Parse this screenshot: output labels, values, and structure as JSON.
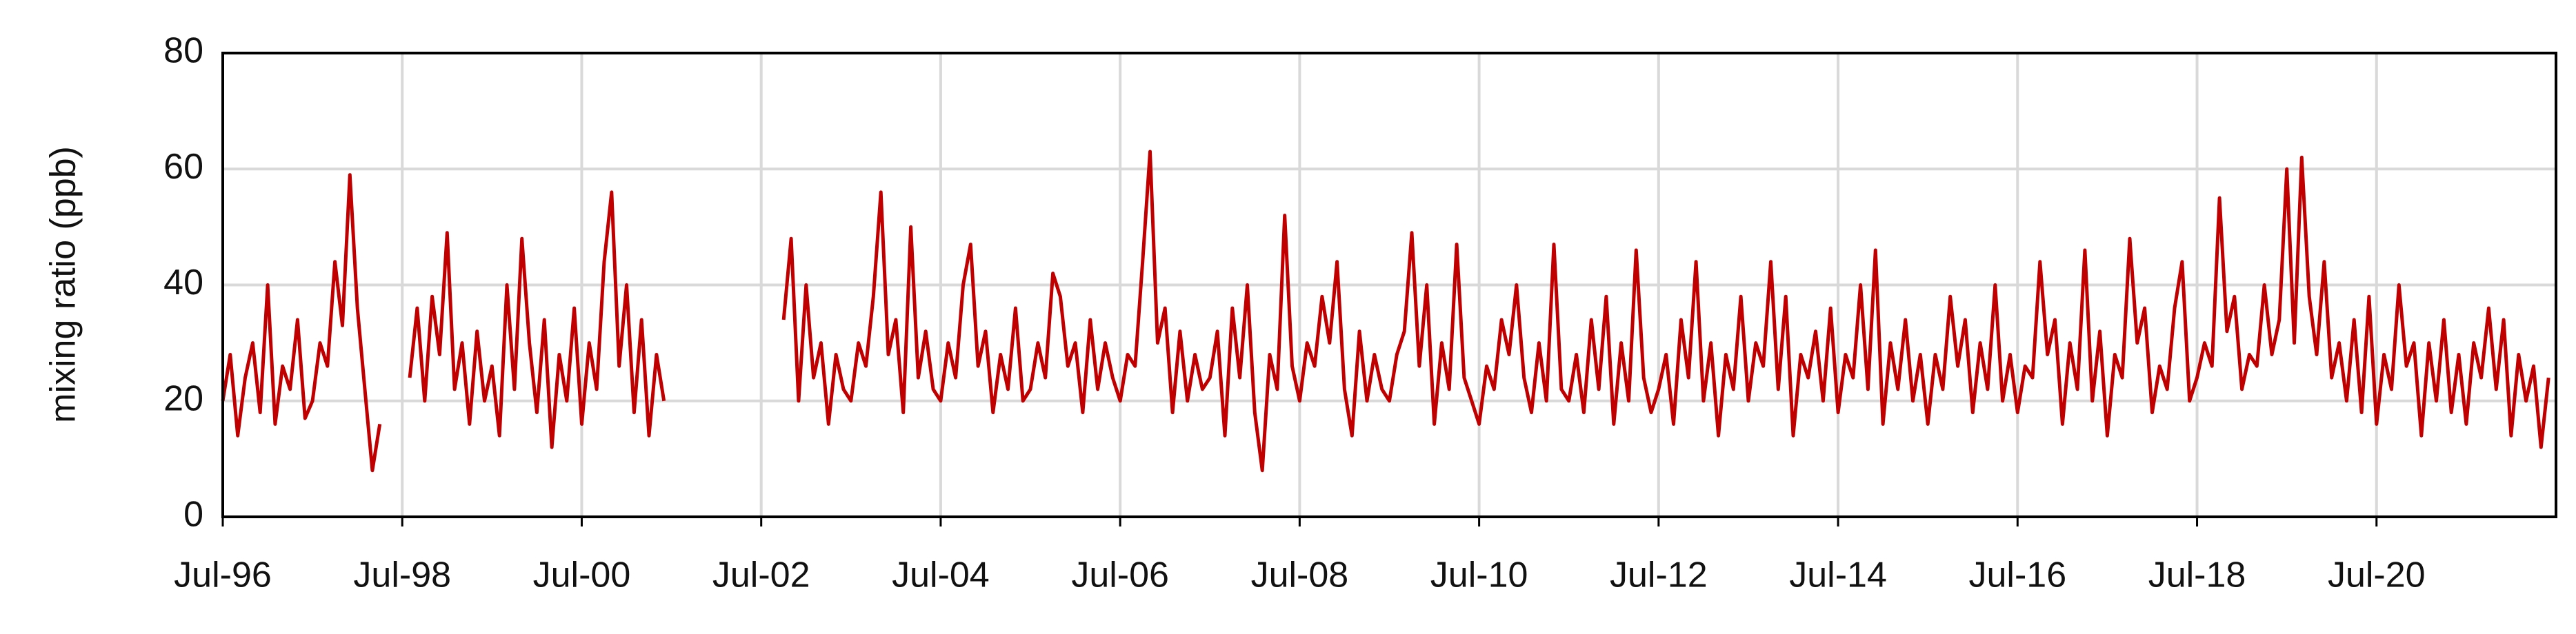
{
  "chart_data": {
    "type": "line",
    "y_label": "mixing ratio (ppb)",
    "x": [
      "1996-07",
      "1996-08",
      "1996-09",
      "1996-10",
      "1996-11",
      "1996-12",
      "1997-01",
      "1997-02",
      "1997-03",
      "1997-04",
      "1997-05",
      "1997-06",
      "1997-07",
      "1997-08",
      "1997-09",
      "1997-10",
      "1997-11",
      "1997-12",
      "1998-01",
      "1998-02",
      "1998-03",
      "1998-04",
      "1998-05",
      "1998-06",
      "1998-07",
      "1998-08",
      "1998-09",
      "1998-10",
      "1998-11",
      "1998-12",
      "1999-01",
      "1999-02",
      "1999-03",
      "1999-04",
      "1999-05",
      "1999-06",
      "1999-07",
      "1999-08",
      "1999-09",
      "1999-10",
      "1999-11",
      "1999-12",
      "2000-01",
      "2000-02",
      "2000-03",
      "2000-04",
      "2000-05",
      "2000-06",
      "2000-07",
      "2000-08",
      "2000-09",
      "2000-10",
      "2000-11",
      "2000-12",
      "2001-01",
      "2001-02",
      "2001-03",
      "2001-04",
      "2001-05",
      "2001-06",
      "2001-07",
      "2001-08",
      "2001-09",
      "2001-10",
      "2001-11",
      "2001-12",
      "2002-01",
      "2002-02",
      "2002-03",
      "2002-04",
      "2002-05",
      "2002-06",
      "2002-07",
      "2002-08",
      "2002-09",
      "2002-10",
      "2002-11",
      "2002-12",
      "2003-01",
      "2003-02",
      "2003-03",
      "2003-04",
      "2003-05",
      "2003-06",
      "2003-07",
      "2003-08",
      "2003-09",
      "2003-10",
      "2003-11",
      "2003-12",
      "2004-01",
      "2004-02",
      "2004-03",
      "2004-04",
      "2004-05",
      "2004-06",
      "2004-07",
      "2004-08",
      "2004-09",
      "2004-10",
      "2004-11",
      "2004-12",
      "2005-01",
      "2005-02",
      "2005-03",
      "2005-04",
      "2005-05",
      "2005-06",
      "2005-07",
      "2005-08",
      "2005-09",
      "2005-10",
      "2005-11",
      "2005-12",
      "2006-01",
      "2006-02",
      "2006-03",
      "2006-04",
      "2006-05",
      "2006-06",
      "2006-07",
      "2006-08",
      "2006-09",
      "2006-10",
      "2006-11",
      "2006-12",
      "2007-01",
      "2007-02",
      "2007-03",
      "2007-04",
      "2007-05",
      "2007-06",
      "2007-07",
      "2007-08",
      "2007-09",
      "2007-10",
      "2007-11",
      "2007-12",
      "2008-01",
      "2008-02",
      "2008-03",
      "2008-04",
      "2008-05",
      "2008-06",
      "2008-07",
      "2008-08",
      "2008-09",
      "2008-10",
      "2008-11",
      "2008-12",
      "2009-01",
      "2009-02",
      "2009-03",
      "2009-04",
      "2009-05",
      "2009-06",
      "2009-07",
      "2009-08",
      "2009-09",
      "2009-10",
      "2009-11",
      "2009-12",
      "2010-01",
      "2010-02",
      "2010-03",
      "2010-04",
      "2010-05",
      "2010-06",
      "2010-07",
      "2010-08",
      "2010-09",
      "2010-10",
      "2010-11",
      "2010-12",
      "2011-01",
      "2011-02",
      "2011-03",
      "2011-04",
      "2011-05",
      "2011-06",
      "2011-07",
      "2011-08",
      "2011-09",
      "2011-10",
      "2011-11",
      "2011-12",
      "2012-01",
      "2012-02",
      "2012-03",
      "2012-04",
      "2012-05",
      "2012-06",
      "2012-07",
      "2012-08",
      "2012-09",
      "2012-10",
      "2012-11",
      "2012-12",
      "2013-01",
      "2013-02",
      "2013-03",
      "2013-04",
      "2013-05",
      "2013-06",
      "2013-07",
      "2013-08",
      "2013-09",
      "2013-10",
      "2013-11",
      "2013-12",
      "2014-01",
      "2014-02",
      "2014-03",
      "2014-04",
      "2014-05",
      "2014-06",
      "2014-07",
      "2014-08",
      "2014-09",
      "2014-10",
      "2014-11",
      "2014-12",
      "2015-01",
      "2015-02",
      "2015-03",
      "2015-04",
      "2015-05",
      "2015-06",
      "2015-07",
      "2015-08",
      "2015-09",
      "2015-10",
      "2015-11",
      "2015-12",
      "2016-01",
      "2016-02",
      "2016-03",
      "2016-04",
      "2016-05",
      "2016-06",
      "2016-07",
      "2016-08",
      "2016-09",
      "2016-10",
      "2016-11",
      "2016-12",
      "2017-01",
      "2017-02",
      "2017-03",
      "2017-04",
      "2017-05",
      "2017-06",
      "2017-07",
      "2017-08",
      "2017-09",
      "2017-10",
      "2017-11",
      "2017-12",
      "2018-01",
      "2018-02",
      "2018-03",
      "2018-04",
      "2018-05",
      "2018-06",
      "2018-07",
      "2018-08",
      "2018-09",
      "2018-10",
      "2018-11",
      "2018-12",
      "2019-01",
      "2019-02",
      "2019-03",
      "2019-04",
      "2019-05",
      "2019-06",
      "2019-07",
      "2019-08",
      "2019-09",
      "2019-10",
      "2019-11",
      "2019-12",
      "2020-01",
      "2020-02",
      "2020-03",
      "2020-04",
      "2020-05",
      "2020-06",
      "2020-07",
      "2020-08",
      "2020-09",
      "2020-10",
      "2020-11",
      "2020-12",
      "2021-01",
      "2021-02",
      "2021-03",
      "2021-04",
      "2021-05",
      "2021-06",
      "2021-07",
      "2021-08",
      "2021-09",
      "2021-10",
      "2021-11",
      "2021-12",
      "2022-01",
      "2022-02",
      "2022-03",
      "2022-04",
      "2022-05",
      "2022-06"
    ],
    "series": [
      {
        "color": "#c00000",
        "values": [
          20,
          28,
          14,
          24,
          30,
          18,
          40,
          16,
          26,
          22,
          34,
          17,
          20,
          30,
          26,
          44,
          33,
          59,
          36,
          22,
          8,
          16,
          null,
          null,
          null,
          24,
          36,
          20,
          38,
          28,
          49,
          22,
          30,
          16,
          32,
          20,
          26,
          14,
          40,
          22,
          48,
          30,
          18,
          34,
          12,
          28,
          20,
          36,
          16,
          30,
          22,
          44,
          56,
          26,
          40,
          18,
          34,
          14,
          28,
          20,
          null,
          null,
          null,
          null,
          null,
          null,
          null,
          null,
          null,
          null,
          null,
          null,
          null,
          null,
          null,
          34,
          48,
          20,
          40,
          24,
          30,
          16,
          28,
          22,
          20,
          30,
          26,
          38,
          56,
          28,
          34,
          18,
          50,
          24,
          32,
          22,
          20,
          30,
          24,
          40,
          47,
          26,
          32,
          18,
          28,
          22,
          36,
          20,
          22,
          30,
          24,
          42,
          38,
          26,
          30,
          18,
          34,
          22,
          30,
          24,
          20,
          28,
          26,
          44,
          63,
          30,
          36,
          18,
          32,
          20,
          28,
          22,
          24,
          32,
          14,
          36,
          24,
          40,
          18,
          8,
          28,
          22,
          52,
          26,
          20,
          30,
          26,
          38,
          30,
          44,
          22,
          14,
          32,
          20,
          28,
          22,
          20,
          28,
          32,
          49,
          26,
          40,
          16,
          30,
          22,
          47,
          24,
          20,
          16,
          26,
          22,
          34,
          28,
          40,
          24,
          18,
          30,
          20,
          47,
          22,
          20,
          28,
          18,
          34,
          22,
          38,
          16,
          30,
          20,
          46,
          24,
          18,
          22,
          28,
          16,
          34,
          24,
          44,
          20,
          30,
          14,
          28,
          22,
          38,
          20,
          30,
          26,
          44,
          22,
          38,
          14,
          28,
          24,
          32,
          20,
          36,
          18,
          28,
          24,
          40,
          22,
          46,
          16,
          30,
          22,
          34,
          20,
          28,
          16,
          28,
          22,
          38,
          26,
          34,
          18,
          30,
          22,
          40,
          20,
          28,
          18,
          26,
          24,
          44,
          28,
          34,
          16,
          30,
          22,
          46,
          20,
          32,
          14,
          28,
          24,
          48,
          30,
          36,
          18,
          26,
          22,
          36,
          44,
          20,
          24,
          30,
          26,
          55,
          32,
          38,
          22,
          28,
          26,
          40,
          28,
          34,
          60,
          30,
          62,
          38,
          28,
          44,
          24,
          30,
          20,
          34,
          18,
          38,
          16,
          28,
          22,
          40,
          26,
          30,
          14,
          30,
          20,
          34,
          18,
          28,
          16,
          30,
          24,
          36,
          22,
          34,
          14,
          28,
          20,
          26,
          12,
          24
        ]
      }
    ],
    "xlim": [
      "1996-07",
      "2022-07"
    ],
    "xticks": [
      {
        "value": "1996-07",
        "label": "Jul-96"
      },
      {
        "value": "1998-07",
        "label": "Jul-98"
      },
      {
        "value": "2000-07",
        "label": "Jul-00"
      },
      {
        "value": "2002-07",
        "label": "Jul-02"
      },
      {
        "value": "2004-07",
        "label": "Jul-04"
      },
      {
        "value": "2006-07",
        "label": "Jul-06"
      },
      {
        "value": "2008-07",
        "label": "Jul-08"
      },
      {
        "value": "2010-07",
        "label": "Jul-10"
      },
      {
        "value": "2012-07",
        "label": "Jul-12"
      },
      {
        "value": "2014-07",
        "label": "Jul-14"
      },
      {
        "value": "2016-07",
        "label": "Jul-16"
      },
      {
        "value": "2018-07",
        "label": "Jul-18"
      },
      {
        "value": "2020-07",
        "label": "Jul-20"
      }
    ],
    "ylim": [
      0,
      80
    ],
    "yticks": [
      0,
      20,
      40,
      60,
      80
    ],
    "grid": true
  }
}
